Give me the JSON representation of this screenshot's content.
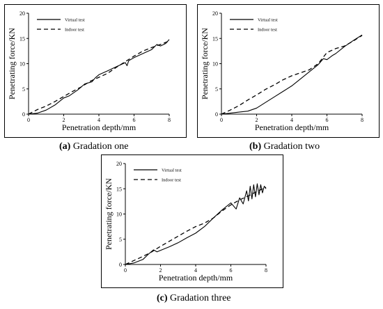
{
  "captions": [
    {
      "label": "(a)",
      "text": " Gradation one"
    },
    {
      "label": "(b)",
      "text": " Gradation two"
    },
    {
      "label": "(c)",
      "text": " Gradation three"
    }
  ],
  "chart_data": [
    {
      "type": "line",
      "xlabel": "Penetration depth/mm",
      "ylabel": "Penetrating force/KN",
      "xlim": [
        0,
        8
      ],
      "ylim": [
        0,
        20
      ],
      "xticks": [
        0,
        2,
        4,
        6,
        8
      ],
      "yticks": [
        0,
        5,
        10,
        15,
        20
      ],
      "grid": false,
      "legend_position": "top-left",
      "series": [
        {
          "name": "Virtual test",
          "style": "solid",
          "x": [
            0,
            0.5,
            1.0,
            1.5,
            2.0,
            2.3,
            2.8,
            3.2,
            3.6,
            3.8,
            4.0,
            4.5,
            5.0,
            5.5,
            5.6,
            5.7,
            6.0,
            6.5,
            7.0,
            7.3,
            7.5,
            7.8,
            8.0
          ],
          "y": [
            0,
            0.2,
            0.8,
            1.8,
            3.2,
            3.6,
            4.8,
            6.0,
            6.4,
            7.2,
            7.8,
            8.6,
            9.4,
            10.2,
            9.6,
            10.6,
            11.2,
            12.0,
            12.8,
            13.8,
            13.5,
            14.0,
            14.8
          ]
        },
        {
          "name": "Indoor test",
          "style": "dashed",
          "x": [
            0,
            0.5,
            1.0,
            1.5,
            2.0,
            2.5,
            3.0,
            3.5,
            4.0,
            4.5,
            5.0,
            5.5,
            6.0,
            6.5,
            7.0,
            7.5,
            8.0
          ],
          "y": [
            0,
            0.9,
            1.6,
            2.5,
            3.5,
            4.5,
            5.4,
            6.5,
            7.3,
            8.1,
            9.3,
            10.4,
            11.5,
            12.5,
            13.2,
            13.8,
            14.5
          ]
        }
      ]
    },
    {
      "type": "line",
      "xlabel": "Penetration depth/mm",
      "ylabel": "Penetrating force/KN",
      "xlim": [
        0,
        8
      ],
      "ylim": [
        0,
        20
      ],
      "xticks": [
        0,
        2,
        4,
        6,
        8
      ],
      "yticks": [
        0,
        5,
        10,
        15,
        20
      ],
      "grid": false,
      "legend_position": "top-left",
      "series": [
        {
          "name": "Virtual test",
          "style": "solid",
          "x": [
            0,
            0.5,
            1.0,
            1.5,
            2.0,
            2.5,
            3.0,
            3.5,
            4.0,
            4.5,
            5.0,
            5.5,
            5.8,
            6.0,
            6.3,
            6.5,
            7.0,
            7.5,
            8.0
          ],
          "y": [
            0,
            0.2,
            0.4,
            0.6,
            1.2,
            2.3,
            3.4,
            4.5,
            5.6,
            7.0,
            8.4,
            9.8,
            11.0,
            10.8,
            11.6,
            12.0,
            13.4,
            14.6,
            15.7
          ]
        },
        {
          "name": "Indoor test",
          "style": "dashed",
          "x": [
            0,
            0.5,
            1.0,
            1.5,
            2.0,
            2.5,
            3.0,
            3.5,
            4.0,
            4.5,
            5.0,
            5.5,
            6.0,
            6.5,
            7.0,
            7.5,
            8.0
          ],
          "y": [
            0,
            0.8,
            1.7,
            2.8,
            3.8,
            4.9,
            5.8,
            6.8,
            7.6,
            8.2,
            8.8,
            10.0,
            12.2,
            13.0,
            13.5,
            14.5,
            15.6
          ]
        }
      ]
    },
    {
      "type": "line",
      "xlabel": "Penetration depth/mm",
      "ylabel": "Penetrating force/KN",
      "xlim": [
        0,
        8
      ],
      "ylim": [
        0,
        20
      ],
      "xticks": [
        0,
        2,
        4,
        6,
        8
      ],
      "yticks": [
        0,
        5,
        10,
        15,
        20
      ],
      "grid": false,
      "legend_position": "top-left",
      "series": [
        {
          "name": "Virtual test",
          "style": "solid",
          "x": [
            0,
            0.5,
            1.0,
            1.3,
            1.6,
            1.8,
            2.0,
            2.5,
            3.0,
            3.5,
            4.0,
            4.5,
            5.0,
            5.5,
            6.0,
            6.3,
            6.5,
            6.7,
            6.9,
            7.0,
            7.1,
            7.2,
            7.3,
            7.4,
            7.5,
            7.6,
            7.7,
            7.8,
            7.9,
            8.0
          ],
          "y": [
            0,
            0.3,
            1.0,
            2.0,
            2.9,
            2.5,
            2.8,
            3.5,
            4.3,
            5.3,
            6.2,
            7.5,
            9.2,
            10.8,
            12.2,
            11.0,
            13.2,
            12.0,
            14.6,
            12.6,
            15.5,
            13.0,
            15.8,
            13.4,
            16.0,
            13.8,
            15.8,
            14.2,
            15.5,
            15.0
          ]
        },
        {
          "name": "Indoor test",
          "style": "dashed",
          "x": [
            0,
            0.5,
            1.0,
            1.5,
            2.0,
            2.5,
            3.0,
            3.5,
            4.0,
            4.5,
            5.0,
            5.5,
            6.0,
            6.5,
            7.0,
            7.5,
            8.0
          ],
          "y": [
            0,
            0.8,
            1.6,
            2.5,
            3.6,
            4.6,
            5.6,
            6.6,
            7.5,
            8.2,
            9.2,
            10.6,
            11.8,
            12.8,
            13.6,
            14.5,
            15.3
          ]
        }
      ]
    }
  ]
}
